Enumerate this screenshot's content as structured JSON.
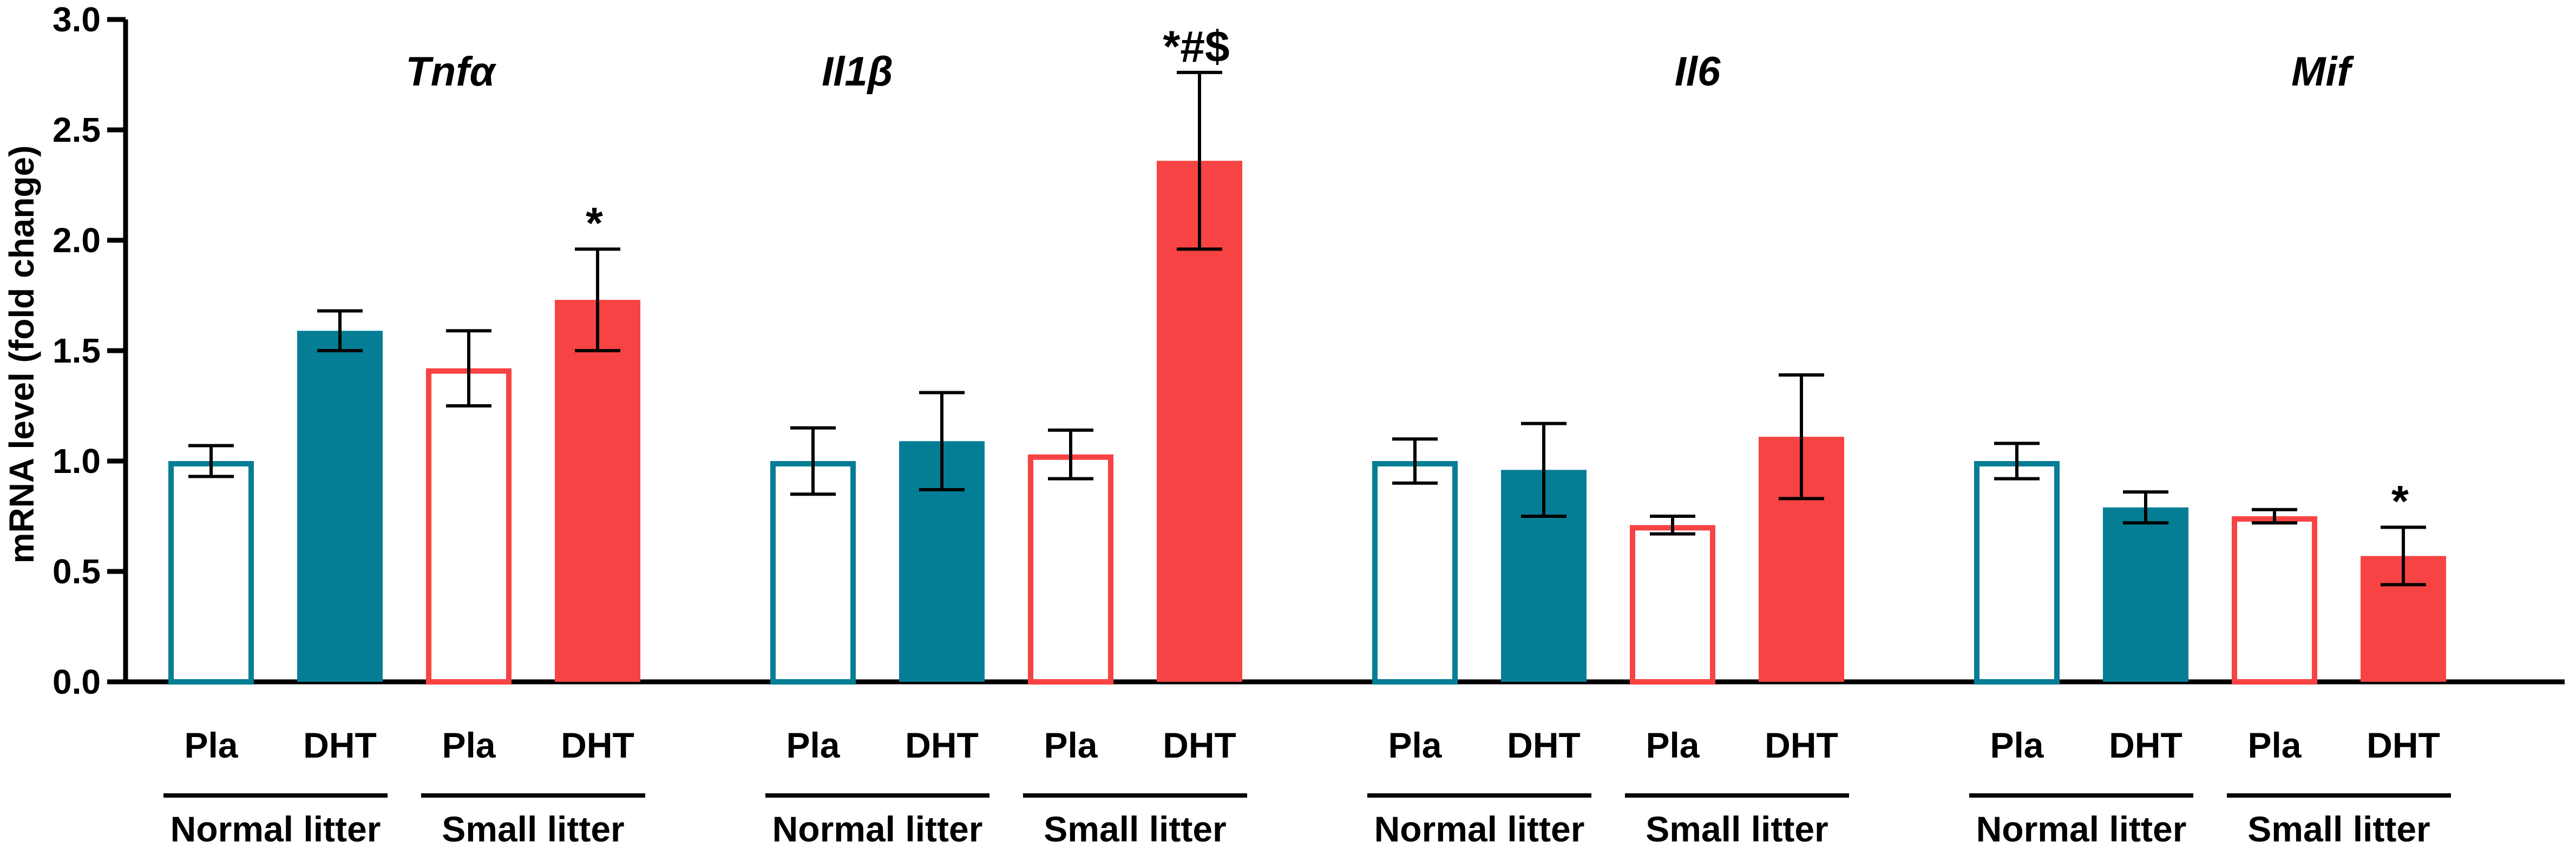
{
  "chart_data": {
    "type": "bar",
    "ylabel": "mRNA level (fold change)",
    "ylim": [
      0,
      3.0
    ],
    "yticks": [
      "0.0",
      "0.5",
      "1.0",
      "1.5",
      "2.0",
      "2.5",
      "3.0"
    ],
    "grid": false,
    "condition_labels": [
      "Pla",
      "DHT",
      "Pla",
      "DHT"
    ],
    "litter_labels": [
      "Normal litter",
      "Small litter"
    ],
    "colors": {
      "normal": "#057E95",
      "small": "#F74343"
    },
    "groups": [
      {
        "gene": "Tnfα",
        "bars": [
          {
            "condition": "Pla",
            "litter": "normal",
            "filled": false,
            "value": 1.0,
            "err": 0.07,
            "sig": ""
          },
          {
            "condition": "DHT",
            "litter": "normal",
            "filled": true,
            "value": 1.59,
            "err": 0.09,
            "sig": ""
          },
          {
            "condition": "Pla",
            "litter": "small",
            "filled": false,
            "value": 1.42,
            "err": 0.17,
            "sig": ""
          },
          {
            "condition": "DHT",
            "litter": "small",
            "filled": true,
            "value": 1.73,
            "err": 0.23,
            "sig": "*"
          }
        ]
      },
      {
        "gene": "Il1β",
        "bars": [
          {
            "condition": "Pla",
            "litter": "normal",
            "filled": false,
            "value": 1.0,
            "err": 0.15,
            "sig": ""
          },
          {
            "condition": "DHT",
            "litter": "normal",
            "filled": true,
            "value": 1.09,
            "err": 0.22,
            "sig": ""
          },
          {
            "condition": "Pla",
            "litter": "small",
            "filled": false,
            "value": 1.03,
            "err": 0.11,
            "sig": ""
          },
          {
            "condition": "DHT",
            "litter": "small",
            "filled": true,
            "value": 2.36,
            "err": 0.4,
            "sig": "*#$"
          }
        ]
      },
      {
        "gene": "Il6",
        "bars": [
          {
            "condition": "Pla",
            "litter": "normal",
            "filled": false,
            "value": 1.0,
            "err": 0.1,
            "sig": ""
          },
          {
            "condition": "DHT",
            "litter": "normal",
            "filled": true,
            "value": 0.96,
            "err": 0.21,
            "sig": ""
          },
          {
            "condition": "Pla",
            "litter": "small",
            "filled": false,
            "value": 0.71,
            "err": 0.04,
            "sig": ""
          },
          {
            "condition": "DHT",
            "litter": "small",
            "filled": true,
            "value": 1.11,
            "err": 0.28,
            "sig": ""
          }
        ]
      },
      {
        "gene": "Mif",
        "bars": [
          {
            "condition": "Pla",
            "litter": "normal",
            "filled": false,
            "value": 1.0,
            "err": 0.08,
            "sig": ""
          },
          {
            "condition": "DHT",
            "litter": "normal",
            "filled": true,
            "value": 0.79,
            "err": 0.07,
            "sig": ""
          },
          {
            "condition": "Pla",
            "litter": "small",
            "filled": false,
            "value": 0.75,
            "err": 0.03,
            "sig": ""
          },
          {
            "condition": "DHT",
            "litter": "small",
            "filled": true,
            "value": 0.57,
            "err": 0.13,
            "sig": "*"
          }
        ]
      }
    ]
  }
}
